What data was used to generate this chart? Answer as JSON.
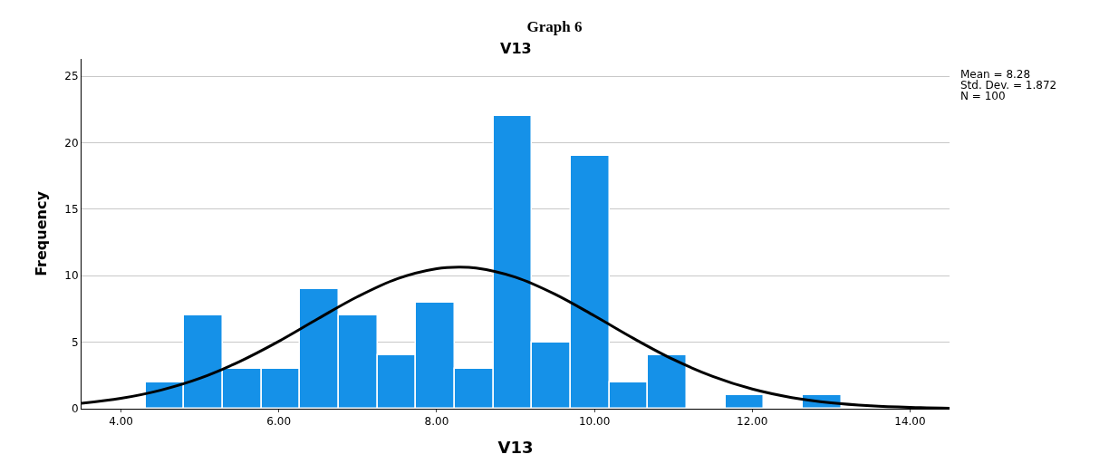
{
  "chart_data": {
    "type": "histogram",
    "title": "Graph 6",
    "subtitle": "V13",
    "xlabel": "V13",
    "ylabel": "Frequency",
    "bins": [
      4.31,
      4.8,
      5.29,
      5.78,
      6.27,
      6.76,
      7.25,
      7.74,
      8.23,
      8.72,
      9.21,
      9.7,
      10.19,
      10.68,
      11.17,
      11.66,
      12.15,
      12.64,
      13.13
    ],
    "series": [
      {
        "color": "#1591e8",
        "values": [
          2,
          7,
          3,
          3,
          9,
          7,
          4,
          8,
          3,
          22,
          5,
          19,
          2,
          4,
          0,
          1,
          0,
          1
        ]
      },
      {
        "type": "line",
        "color": "#000000",
        "x": [
          3.5,
          4.0,
          4.5,
          5.0,
          5.5,
          6.0,
          6.5,
          7.0,
          7.5,
          8.0,
          8.28,
          8.5,
          9.0,
          9.5,
          10.0,
          10.5,
          11.0,
          11.5,
          12.0,
          12.5,
          13.0,
          13.5,
          14.0,
          14.5
        ],
        "values": [
          0.41,
          0.78,
          1.39,
          2.29,
          3.54,
          5.07,
          6.78,
          8.43,
          9.77,
          10.53,
          10.65,
          10.58,
          9.89,
          8.61,
          6.98,
          5.27,
          3.7,
          2.43,
          1.48,
          0.84,
          0.44,
          0.22,
          0.1,
          0.04
        ]
      }
    ],
    "xlim": [
      3.5,
      14.5
    ],
    "xticks": [
      {
        "value": 4,
        "label": "4.00"
      },
      {
        "value": 6,
        "label": "6.00"
      },
      {
        "value": 8,
        "label": "8.00"
      },
      {
        "value": 10,
        "label": "10.00"
      },
      {
        "value": 12,
        "label": "12.00"
      },
      {
        "value": 14,
        "label": "14.00"
      }
    ],
    "ylim": [
      0,
      26.3
    ],
    "yticks": [
      0,
      5,
      10,
      15,
      20,
      25
    ],
    "grid": "y",
    "annotations": [
      "Mean = 8.28",
      "Std. Dev. = 1.872",
      "N = 100"
    ]
  }
}
